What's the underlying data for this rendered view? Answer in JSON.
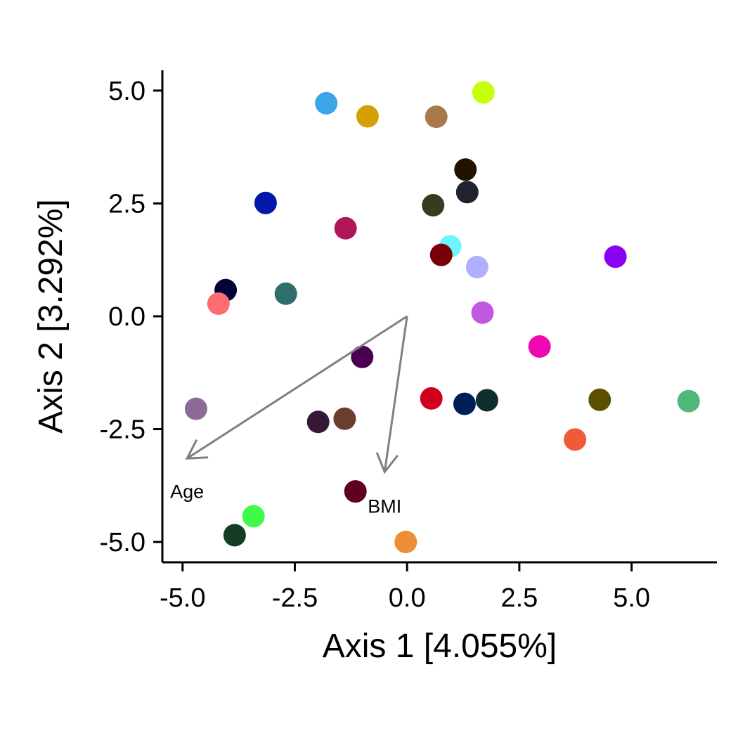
{
  "chart_data": {
    "type": "scatter",
    "title": "",
    "xlabel": "Axis 1 [4.055%]",
    "ylabel": "Axis 2 [3.292%]",
    "xlim": [
      -5.45,
      6.9
    ],
    "ylim": [
      -5.45,
      5.45
    ],
    "x_ticks": [
      -5.0,
      -2.5,
      0.0,
      2.5,
      5.0
    ],
    "y_ticks": [
      -5.0,
      -2.5,
      0.0,
      2.5,
      5.0
    ],
    "x_tick_labels": [
      "-5.0",
      "-2.5",
      "0.0",
      "2.5",
      "5.0"
    ],
    "y_tick_labels": [
      "-5.0",
      "-2.5",
      "0.0",
      "2.5",
      "5.0"
    ],
    "grid": false,
    "legend": "none",
    "points": [
      {
        "x": -1.8,
        "y": 4.72,
        "color": "#3aa6e8"
      },
      {
        "x": -0.88,
        "y": 4.43,
        "color": "#d4a006"
      },
      {
        "x": 0.65,
        "y": 4.42,
        "color": "#a87a4a"
      },
      {
        "x": 1.7,
        "y": 4.96,
        "color": "#c6ff0a"
      },
      {
        "x": 1.3,
        "y": 3.25,
        "color": "#221200"
      },
      {
        "x": 1.34,
        "y": 2.75,
        "color": "#22222e"
      },
      {
        "x": 0.58,
        "y": 2.46,
        "color": "#373c1e"
      },
      {
        "x": -3.15,
        "y": 2.51,
        "color": "#0019a8"
      },
      {
        "x": -1.37,
        "y": 1.95,
        "color": "#b0175a"
      },
      {
        "x": 0.96,
        "y": 1.55,
        "color": "#6ef6fe"
      },
      {
        "x": 0.76,
        "y": 1.36,
        "color": "#790007"
      },
      {
        "x": 1.56,
        "y": 1.09,
        "color": "#b0b0fe"
      },
      {
        "x": 4.64,
        "y": 1.32,
        "color": "#8b00f0"
      },
      {
        "x": -4.04,
        "y": 0.58,
        "color": "#020236"
      },
      {
        "x": -2.7,
        "y": 0.5,
        "color": "#2f6f6b"
      },
      {
        "x": -4.2,
        "y": 0.28,
        "color": "#fe6b70"
      },
      {
        "x": 1.68,
        "y": 0.08,
        "color": "#c059e0"
      },
      {
        "x": 2.95,
        "y": -0.67,
        "color": "#ed08b2"
      },
      {
        "x": -1.0,
        "y": -0.9,
        "color": "#4a0052"
      },
      {
        "x": 0.54,
        "y": -1.82,
        "color": "#d2001f"
      },
      {
        "x": 1.28,
        "y": -1.94,
        "color": "#001e58"
      },
      {
        "x": 1.78,
        "y": -1.86,
        "color": "#0f2e2e"
      },
      {
        "x": 4.29,
        "y": -1.85,
        "color": "#5d4f00"
      },
      {
        "x": 6.27,
        "y": -1.88,
        "color": "#50b878"
      },
      {
        "x": -4.7,
        "y": -2.05,
        "color": "#8e6a98"
      },
      {
        "x": -1.98,
        "y": -2.34,
        "color": "#351838"
      },
      {
        "x": -1.39,
        "y": -2.27,
        "color": "#6b3d2e"
      },
      {
        "x": 3.74,
        "y": -2.73,
        "color": "#ef5b36"
      },
      {
        "x": -1.15,
        "y": -3.88,
        "color": "#5f001e"
      },
      {
        "x": -3.42,
        "y": -4.43,
        "color": "#3efb4a"
      },
      {
        "x": -3.84,
        "y": -4.85,
        "color": "#153d24"
      },
      {
        "x": -0.03,
        "y": -5.0,
        "color": "#ee8e34"
      }
    ],
    "biplot_arrows": [
      {
        "label": "Age",
        "x0": 0.0,
        "y0": 0.0,
        "x1": -4.9,
        "y1": -3.15,
        "label_x": -4.9,
        "label_y": -3.87
      },
      {
        "label": "BMI",
        "x0": 0.0,
        "y0": 0.0,
        "x1": -0.5,
        "y1": -3.45,
        "label_x": -0.5,
        "label_y": -4.2
      }
    ],
    "arrow_color": "#808080"
  }
}
